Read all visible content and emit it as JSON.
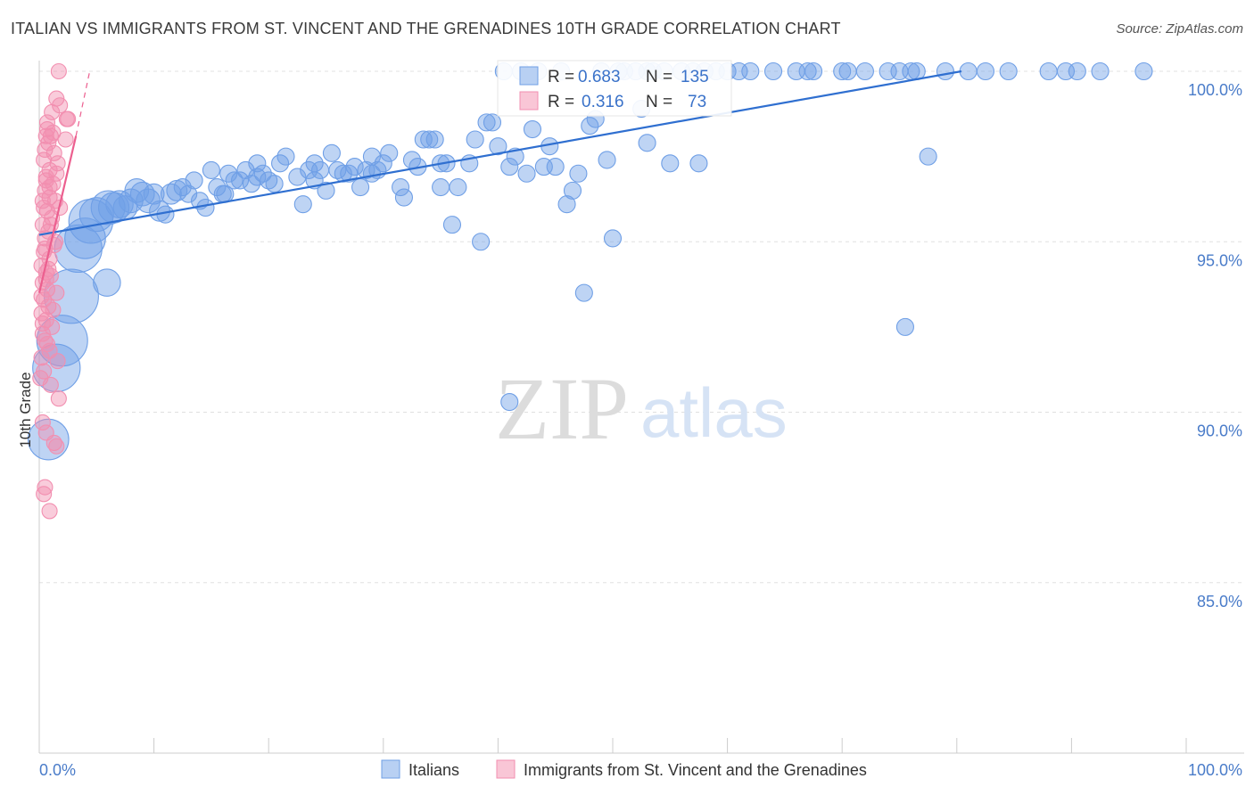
{
  "title": "ITALIAN VS IMMIGRANTS FROM ST. VINCENT AND THE GRENADINES 10TH GRADE CORRELATION CHART",
  "source": "Source: ZipAtlas.com",
  "watermark": {
    "zip": "ZIP",
    "atlas": "atlas"
  },
  "colors": {
    "italians": "#6f9fe6",
    "italians_line": "#2f6fd0",
    "immigrants": "#f28fb0",
    "immigrants_line": "#ec5f8f",
    "tick_text": "#4a7cc9"
  },
  "stats": [
    {
      "r_label": "R =",
      "r_value": "0.683",
      "n_label": "N =",
      "n_value": "135"
    },
    {
      "r_label": "R =",
      "r_value": "0.316",
      "n_label": "N =",
      "n_value": "73"
    }
  ],
  "legend": [
    {
      "label": "Italians"
    },
    {
      "label": "Immigrants from St. Vincent and the Grenadines"
    }
  ],
  "chart_data": {
    "type": "scatter",
    "title": "ITALIAN VS IMMIGRANTS FROM ST. VINCENT AND THE GRENADINES 10TH GRADE CORRELATION CHART",
    "xlabel": "",
    "ylabel": "10th Grade",
    "xlim": [
      0,
      100
    ],
    "ylim": [
      80,
      100.5
    ],
    "x_tick_labels": [
      "0.0%",
      "100.0%"
    ],
    "y_ticks": [
      85,
      90,
      95,
      100
    ],
    "y_tick_labels": [
      "85.0%",
      "90.0%",
      "95.0%",
      "100.0%"
    ],
    "grid": true,
    "legend_position": "bottom",
    "series": [
      {
        "name": "Italians",
        "trend": {
          "x": [
            0,
            80.4
          ],
          "y": [
            95.2,
            100.0
          ]
        },
        "points": [
          [
            0.8,
            89.2,
            1.2
          ],
          [
            1.5,
            91.3,
            1.4
          ],
          [
            2.0,
            92.1,
            1.5
          ],
          [
            2.8,
            93.4,
            1.6
          ],
          [
            3.4,
            94.8,
            1.4
          ],
          [
            4.0,
            95.1,
            1.2
          ],
          [
            4.5,
            95.6,
            1.3
          ],
          [
            5.0,
            95.8,
            1.0
          ],
          [
            6.0,
            96.0,
            1.0
          ],
          [
            6.5,
            96.0,
            0.9
          ],
          [
            7.0,
            96.1,
            0.8
          ],
          [
            7.5,
            96.0,
            0.7
          ],
          [
            8.0,
            96.2,
            0.7
          ],
          [
            8.5,
            96.5,
            0.7
          ],
          [
            9.0,
            96.4,
            0.7
          ],
          [
            9.5,
            96.2,
            0.7
          ],
          [
            10.0,
            96.4,
            0.6
          ],
          [
            10.5,
            95.9,
            0.6
          ],
          [
            11.0,
            95.8,
            0.5
          ],
          [
            11.5,
            96.4,
            0.6
          ],
          [
            12.0,
            96.5,
            0.6
          ],
          [
            12.5,
            96.6,
            0.5
          ],
          [
            13.0,
            96.4,
            0.5
          ],
          [
            13.5,
            96.8,
            0.5
          ],
          [
            14.0,
            96.2,
            0.5
          ],
          [
            14.5,
            96.0,
            0.5
          ],
          [
            15.0,
            97.1,
            0.5
          ],
          [
            15.5,
            96.6,
            0.5
          ],
          [
            16.0,
            96.4,
            0.5
          ],
          [
            16.5,
            97.0,
            0.5
          ],
          [
            17.0,
            96.8,
            0.5
          ],
          [
            17.5,
            96.8,
            0.5
          ],
          [
            18.0,
            97.1,
            0.5
          ],
          [
            18.5,
            96.7,
            0.5
          ],
          [
            19.0,
            97.3,
            0.5
          ],
          [
            19.5,
            97.0,
            0.5
          ],
          [
            20.0,
            96.8,
            0.5
          ],
          [
            20.5,
            96.7,
            0.5
          ],
          [
            21.0,
            97.3,
            0.5
          ],
          [
            21.5,
            97.5,
            0.5
          ],
          [
            22.5,
            96.9,
            0.5
          ],
          [
            23.0,
            96.1,
            0.5
          ],
          [
            23.5,
            97.1,
            0.5
          ],
          [
            24.0,
            97.3,
            0.5
          ],
          [
            24.5,
            97.1,
            0.5
          ],
          [
            25.0,
            96.5,
            0.5
          ],
          [
            25.5,
            97.6,
            0.5
          ],
          [
            26.0,
            97.1,
            0.5
          ],
          [
            26.5,
            97.0,
            0.5
          ],
          [
            27.0,
            97.0,
            0.5
          ],
          [
            27.5,
            97.2,
            0.5
          ],
          [
            28.0,
            96.6,
            0.5
          ],
          [
            28.5,
            97.1,
            0.5
          ],
          [
            29.0,
            97.5,
            0.5
          ],
          [
            29.5,
            97.1,
            0.5
          ],
          [
            30.0,
            97.3,
            0.5
          ],
          [
            30.5,
            97.6,
            0.5
          ],
          [
            31.5,
            96.6,
            0.5
          ],
          [
            31.8,
            96.3,
            0.5
          ],
          [
            32.5,
            97.4,
            0.5
          ],
          [
            33.0,
            97.2,
            0.5
          ],
          [
            33.5,
            98.0,
            0.5
          ],
          [
            34.0,
            98.0,
            0.5
          ],
          [
            34.5,
            98.0,
            0.5
          ],
          [
            35.0,
            96.6,
            0.5
          ],
          [
            35.5,
            97.3,
            0.5
          ],
          [
            36.0,
            95.5,
            0.5
          ],
          [
            36.5,
            96.6,
            0.5
          ],
          [
            37.5,
            97.3,
            0.5
          ],
          [
            38.0,
            98.0,
            0.5
          ],
          [
            38.5,
            95.0,
            0.5
          ],
          [
            39.0,
            98.5,
            0.5
          ],
          [
            39.5,
            98.5,
            0.5
          ],
          [
            40.0,
            97.8,
            0.5
          ],
          [
            40.5,
            100.0,
            0.5
          ],
          [
            41.0,
            97.2,
            0.5
          ],
          [
            41.5,
            97.5,
            0.5
          ],
          [
            42.0,
            100.0,
            0.5
          ],
          [
            42.5,
            97.0,
            0.5
          ],
          [
            43.0,
            98.3,
            0.5
          ],
          [
            43.5,
            100.0,
            0.5
          ],
          [
            44.0,
            97.2,
            0.5
          ],
          [
            44.5,
            97.8,
            0.5
          ],
          [
            45.0,
            97.2,
            0.5
          ],
          [
            45.5,
            100.0,
            0.5
          ],
          [
            46.0,
            96.1,
            0.5
          ],
          [
            46.5,
            96.5,
            0.5
          ],
          [
            47.0,
            97.0,
            0.5
          ],
          [
            47.5,
            93.5,
            0.5
          ],
          [
            48.0,
            98.4,
            0.5
          ],
          [
            48.5,
            98.6,
            0.5
          ],
          [
            49.0,
            100.0,
            0.5
          ],
          [
            49.5,
            97.4,
            0.5
          ],
          [
            50.0,
            95.1,
            0.5
          ],
          [
            50.5,
            100.0,
            0.5
          ],
          [
            51.0,
            100.0,
            0.5
          ],
          [
            52.0,
            100.0,
            0.5
          ],
          [
            52.5,
            98.9,
            0.5
          ],
          [
            53.0,
            100.0,
            0.5
          ],
          [
            53.5,
            100.0,
            0.5
          ],
          [
            54.5,
            100.0,
            0.5
          ],
          [
            55.0,
            97.3,
            0.5
          ],
          [
            56.0,
            100.0,
            0.5
          ],
          [
            57.0,
            100.0,
            0.5
          ],
          [
            57.5,
            97.3,
            0.5
          ],
          [
            58.0,
            100.0,
            0.5
          ],
          [
            59.0,
            100.0,
            0.5
          ],
          [
            60.0,
            100.0,
            0.5
          ],
          [
            61.0,
            100.0,
            0.5
          ],
          [
            62.0,
            100.0,
            0.5
          ],
          [
            64.0,
            100.0,
            0.5
          ],
          [
            66.0,
            100.0,
            0.5
          ],
          [
            67.0,
            100.0,
            0.5
          ],
          [
            67.5,
            100.0,
            0.5
          ],
          [
            70.0,
            100.0,
            0.5
          ],
          [
            70.5,
            100.0,
            0.5
          ],
          [
            72.0,
            100.0,
            0.5
          ],
          [
            74.0,
            100.0,
            0.5
          ],
          [
            75.0,
            100.0,
            0.5
          ],
          [
            76.0,
            100.0,
            0.5
          ],
          [
            76.5,
            100.0,
            0.5
          ],
          [
            77.5,
            97.5,
            0.5
          ],
          [
            79.0,
            100.0,
            0.5
          ],
          [
            81.0,
            100.0,
            0.5
          ],
          [
            82.5,
            100.0,
            0.5
          ],
          [
            84.5,
            100.0,
            0.5
          ],
          [
            88.0,
            100.0,
            0.5
          ],
          [
            89.5,
            100.0,
            0.5
          ],
          [
            90.5,
            100.0,
            0.5
          ],
          [
            92.5,
            100.0,
            0.5
          ],
          [
            96.3,
            100.0,
            0.5
          ],
          [
            41.0,
            90.3,
            0.5
          ],
          [
            75.5,
            92.5,
            0.5
          ],
          [
            5.9,
            93.8,
            0.8
          ],
          [
            16.2,
            96.4,
            0.5
          ],
          [
            24.0,
            96.8,
            0.5
          ],
          [
            53.0,
            97.9,
            0.5
          ],
          [
            29.0,
            97.0,
            0.5
          ],
          [
            35.0,
            97.3,
            0.5
          ],
          [
            19.0,
            96.9,
            0.5
          ]
        ]
      },
      {
        "name": "Immigrants from St. Vincent and the Grenadines",
        "trend": {
          "x": [
            0,
            3.2
          ],
          "y": [
            93.5,
            98.1
          ]
        },
        "trend_ext": {
          "x": [
            3.2,
            4.4
          ],
          "y": [
            98.1,
            100.0
          ]
        },
        "points": [
          [
            1.7,
            100.0,
            0.5
          ],
          [
            1.5,
            99.2,
            0.5
          ],
          [
            1.8,
            99.0,
            0.5
          ],
          [
            2.5,
            98.6,
            0.5
          ],
          [
            0.7,
            98.5,
            0.5
          ],
          [
            2.4,
            98.6,
            0.5
          ],
          [
            0.6,
            98.1,
            0.5
          ],
          [
            1.0,
            98.1,
            0.5
          ],
          [
            2.3,
            98.0,
            0.5
          ],
          [
            0.8,
            97.9,
            0.5
          ],
          [
            1.3,
            97.6,
            0.5
          ],
          [
            1.6,
            97.3,
            0.5
          ],
          [
            0.9,
            97.1,
            0.5
          ],
          [
            1.5,
            97.0,
            0.5
          ],
          [
            0.6,
            96.8,
            0.5
          ],
          [
            1.2,
            96.7,
            0.5
          ],
          [
            0.5,
            96.5,
            0.5
          ],
          [
            0.9,
            96.3,
            0.5
          ],
          [
            1.4,
            96.2,
            0.5
          ],
          [
            0.4,
            96.0,
            0.5
          ],
          [
            0.7,
            95.9,
            0.5
          ],
          [
            1.1,
            95.7,
            0.5
          ],
          [
            0.3,
            95.5,
            0.5
          ],
          [
            0.8,
            95.3,
            0.5
          ],
          [
            0.5,
            95.1,
            0.5
          ],
          [
            1.3,
            94.9,
            0.5
          ],
          [
            0.4,
            94.7,
            0.5
          ],
          [
            0.9,
            94.5,
            0.5
          ],
          [
            0.2,
            94.3,
            0.5
          ],
          [
            0.6,
            94.1,
            0.5
          ],
          [
            1.0,
            94.0,
            0.5
          ],
          [
            0.3,
            93.8,
            0.5
          ],
          [
            0.7,
            93.6,
            0.5
          ],
          [
            1.5,
            93.5,
            0.5
          ],
          [
            0.4,
            93.3,
            0.5
          ],
          [
            0.8,
            93.1,
            0.5
          ],
          [
            0.2,
            92.9,
            0.5
          ],
          [
            0.6,
            92.7,
            0.5
          ],
          [
            1.1,
            92.5,
            0.5
          ],
          [
            0.3,
            92.3,
            0.5
          ],
          [
            0.5,
            92.1,
            0.5
          ],
          [
            0.9,
            91.8,
            0.5
          ],
          [
            0.2,
            91.6,
            0.5
          ],
          [
            1.6,
            91.5,
            0.5
          ],
          [
            0.4,
            91.2,
            0.5
          ],
          [
            0.1,
            91.0,
            0.5
          ],
          [
            1.7,
            90.4,
            0.5
          ],
          [
            0.3,
            89.7,
            0.5
          ],
          [
            0.6,
            89.4,
            0.5
          ],
          [
            1.3,
            89.1,
            0.5
          ],
          [
            1.5,
            89.0,
            0.5
          ],
          [
            0.5,
            87.8,
            0.5
          ],
          [
            0.4,
            87.6,
            0.5
          ],
          [
            0.9,
            87.1,
            0.5
          ],
          [
            0.7,
            98.3,
            0.5
          ],
          [
            1.2,
            98.2,
            0.5
          ],
          [
            0.4,
            97.4,
            0.5
          ],
          [
            1.8,
            96.0,
            0.5
          ],
          [
            0.6,
            96.9,
            0.5
          ],
          [
            1.0,
            95.5,
            0.5
          ],
          [
            0.5,
            94.8,
            0.5
          ],
          [
            0.8,
            94.2,
            0.5
          ],
          [
            1.2,
            93.0,
            0.5
          ],
          [
            0.3,
            92.6,
            0.5
          ],
          [
            0.7,
            92.0,
            0.5
          ],
          [
            1.0,
            90.8,
            0.5
          ],
          [
            0.2,
            93.4,
            0.5
          ],
          [
            1.4,
            95.0,
            0.5
          ],
          [
            0.9,
            96.6,
            0.5
          ],
          [
            0.5,
            97.7,
            0.5
          ],
          [
            1.1,
            98.8,
            0.5
          ],
          [
            0.3,
            96.2,
            0.5
          ],
          [
            0.6,
            93.9,
            0.5
          ]
        ]
      }
    ]
  }
}
